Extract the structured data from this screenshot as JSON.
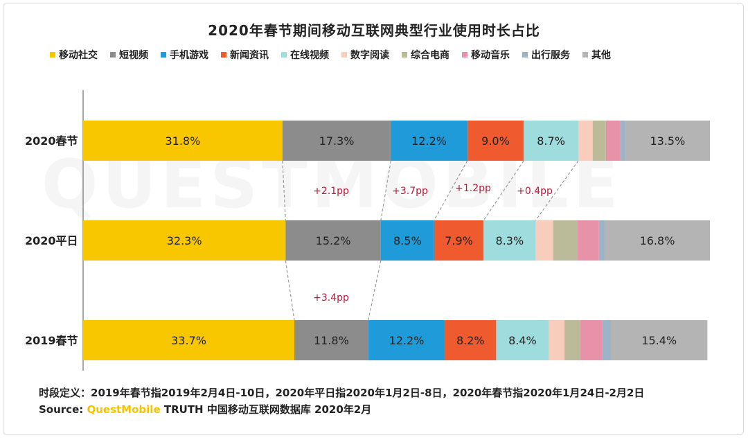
{
  "chart_data": {
    "type": "bar",
    "orientation": "horizontal",
    "stacked": "percent",
    "title": "2020年春节期间移动互联网典型行业使用时长占比",
    "categories": [
      "2020春节",
      "2020平日",
      "2019春节"
    ],
    "series": [
      {
        "name": "移动社交",
        "color": "#f8c700",
        "values": [
          31.8,
          32.3,
          33.7
        ],
        "labels": [
          "31.8%",
          "32.3%",
          "33.7%"
        ]
      },
      {
        "name": "短视频",
        "color": "#8c8c8c",
        "values": [
          17.3,
          15.2,
          11.8
        ],
        "labels": [
          "17.3%",
          "15.2%",
          "11.8%"
        ]
      },
      {
        "name": "手机游戏",
        "color": "#1e9bd8",
        "values": [
          12.2,
          8.5,
          12.2
        ],
        "labels": [
          "12.2%",
          "8.5%",
          "12.2%"
        ]
      },
      {
        "name": "新闻资讯",
        "color": "#ef5a2f",
        "values": [
          9.0,
          7.9,
          8.2
        ],
        "labels": [
          "9.0%",
          "7.9%",
          "8.2%"
        ]
      },
      {
        "name": "在线视频",
        "color": "#9fdcde",
        "values": [
          8.7,
          8.3,
          8.4
        ],
        "labels": [
          "8.7%",
          "8.3%",
          "8.4%"
        ]
      },
      {
        "name": "数字阅读",
        "color": "#f8cdbb",
        "values": [
          2.3,
          2.8,
          2.5
        ],
        "labels": [
          "",
          "",
          ""
        ]
      },
      {
        "name": "综合电商",
        "color": "#bbbb99",
        "values": [
          2.1,
          3.9,
          2.5
        ],
        "labels": [
          "",
          "",
          ""
        ]
      },
      {
        "name": "移动音乐",
        "color": "#e892aa",
        "values": [
          2.3,
          3.4,
          3.5
        ],
        "labels": [
          "",
          "",
          ""
        ]
      },
      {
        "name": "出行服务",
        "color": "#9cb4c8",
        "values": [
          0.8,
          0.9,
          1.4
        ],
        "labels": [
          "",
          "",
          ""
        ]
      },
      {
        "name": "其他",
        "color": "#b4b4b4",
        "values": [
          13.5,
          16.8,
          15.4
        ],
        "labels": [
          "13.5%",
          "16.8%",
          "15.4%"
        ]
      }
    ],
    "annotations": [
      {
        "text": "+2.1pp",
        "between": [
          "2020春节",
          "2020平日"
        ],
        "series": "短视频"
      },
      {
        "text": "+3.7pp",
        "between": [
          "2020春节",
          "2020平日"
        ],
        "series": "手机游戏"
      },
      {
        "text": "+1.2pp",
        "between": [
          "2020春节",
          "2020平日"
        ],
        "series": "新闻资讯"
      },
      {
        "text": "+0.4pp",
        "between": [
          "2020春节",
          "2020平日"
        ],
        "series": "在线视频"
      },
      {
        "text": "+3.4pp",
        "between": [
          "2020平日",
          "2019春节"
        ],
        "series": "短视频"
      }
    ],
    "xlim": [
      0,
      100
    ],
    "legend": "top",
    "grid": false
  },
  "watermark": "QUESTMOBILE",
  "footer": {
    "definition": "时段定义：2019年春节指2019年2月4日-10日，2020年平日指2020年1月2日-8日，2020年春节指2020年1月24日-2月2日",
    "source_prefix": "Source: ",
    "source_brand": "QuestMobile",
    "source_rest": " TRUTH 中国移动互联网数据库 2020年2月"
  }
}
